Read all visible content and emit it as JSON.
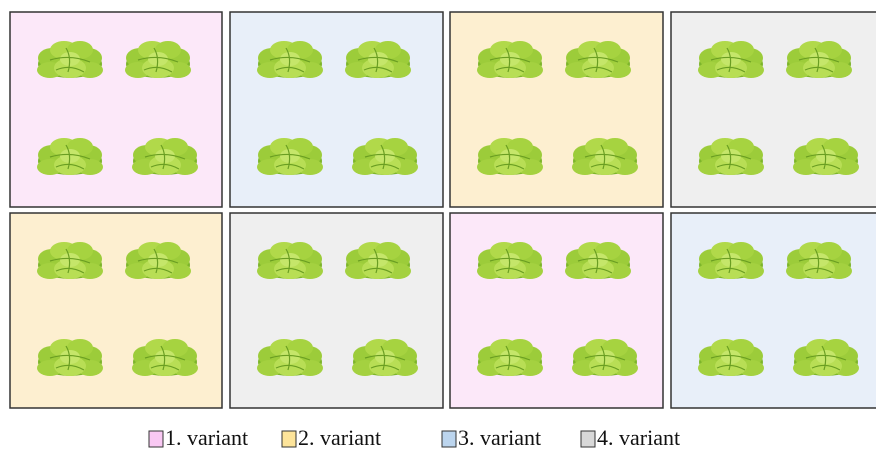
{
  "legend": [
    {
      "label": "1. variant",
      "color": "#f9c8f3"
    },
    {
      "label": "2. variant",
      "color": "#fde49a"
    },
    {
      "label": "3. variant",
      "color": "#bcd5ee"
    },
    {
      "label": "4. variant",
      "color": "#d8d8d8"
    }
  ]
}
